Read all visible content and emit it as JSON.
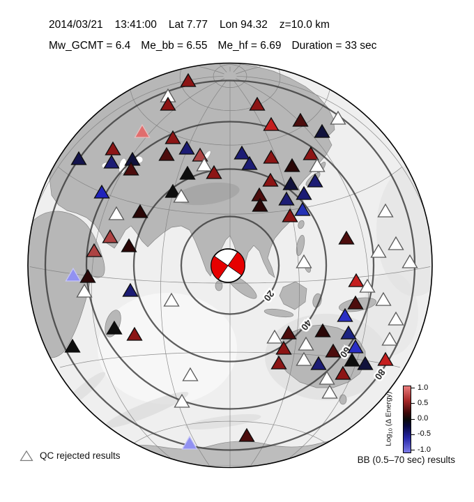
{
  "header": {
    "line1_parts": [
      "2014/03/21",
      "13:41:00",
      "Lat 7.77",
      "Lon 94.32",
      "z=10.0 km"
    ],
    "line2_parts": [
      "Mw_GCMT = 6.4",
      "Me_bb = 6.55",
      "Me_hf = 6.69",
      "Duration = 33 sec"
    ]
  },
  "event": {
    "date": "2014/03/21",
    "time": "13:41:00",
    "lat": 7.77,
    "lon": 94.32,
    "depth_km": 10.0,
    "mw_gcmt": 6.4,
    "me_bb": 6.55,
    "me_hf": 6.69,
    "duration_sec": 33
  },
  "map": {
    "projection": "azimuthal-equidistant",
    "ring_labels": [
      "20",
      "40",
      "60",
      "80"
    ]
  },
  "beachball": {
    "color": "#e60000"
  },
  "station_legend": {
    "qc_label": "QC rejected results"
  },
  "colorbar": {
    "title_prefix": "Log",
    "title_sub": "10",
    "title_suffix": " (Δ Energy)",
    "ticks": [
      "1.0",
      "0.5",
      "0.0",
      "-0.5",
      "-1.0"
    ],
    "footer": "BB (0.5–70 sec) results"
  },
  "stations": [
    [
      270,
      118,
      "#8c1515"
    ],
    [
      241,
      140,
      "#ffffff"
    ],
    [
      241,
      152,
      "#8c1515"
    ],
    [
      204,
      191,
      "#e06d6d"
    ],
    [
      248,
      200,
      "#8c1515"
    ],
    [
      162,
      216,
      "#8c1515"
    ],
    [
      268,
      215,
      "#1c1c74"
    ],
    [
      113,
      230,
      "#14144d"
    ],
    [
      160,
      235,
      "#1c1c74"
    ],
    [
      190,
      231,
      "#11123c"
    ],
    [
      188,
      245,
      "#4d0d0d"
    ],
    [
      239,
      224,
      "#4d0d0d"
    ],
    [
      287,
      225,
      "#ad4343"
    ],
    [
      293,
      239,
      "#ffffff"
    ],
    [
      307,
      250,
      "#8c1515"
    ],
    [
      269,
      251,
      "#0e0e0e"
    ],
    [
      248,
      277,
      "#0e0e0e"
    ],
    [
      260,
      284,
      "#ffffff"
    ],
    [
      146,
      278,
      "#2024bc"
    ],
    [
      167,
      309,
      "#ffffff"
    ],
    [
      201,
      306,
      "#2b0707"
    ],
    [
      158,
      342,
      "#ad4343"
    ],
    [
      135,
      362,
      "#ad4343"
    ],
    [
      185,
      355,
      "#2b0707"
    ],
    [
      105,
      397,
      "#9191f2"
    ],
    [
      126,
      399,
      "#2b0707"
    ],
    [
      121,
      420,
      "#ffffff"
    ],
    [
      187,
      419,
      "#1c1c74"
    ],
    [
      246,
      433,
      "#ffffff"
    ],
    [
      164,
      473,
      "#0e0e0e"
    ],
    [
      193,
      482,
      "#8c1515"
    ],
    [
      104,
      499,
      "#0e0e0e"
    ],
    [
      273,
      540,
      "#ffffff"
    ],
    [
      261,
      578,
      "#ffffff"
    ],
    [
      272,
      638,
      "#9191f2"
    ],
    [
      369,
      152,
      "#8c1515"
    ],
    [
      389,
      181,
      "#c41e1e"
    ],
    [
      431,
      175,
      "#4d0d0d"
    ],
    [
      485,
      172,
      "#ffffff"
    ],
    [
      462,
      191,
      "#11123c"
    ],
    [
      347,
      222,
      "#1c1c74"
    ],
    [
      358,
      237,
      "#1c1c74"
    ],
    [
      389,
      228,
      "#8c1515"
    ],
    [
      446,
      223,
      "#8c1515"
    ],
    [
      419,
      240,
      "#2b0707"
    ],
    [
      455,
      240,
      "#ffffff"
    ],
    [
      388,
      261,
      "#8c1515"
    ],
    [
      417,
      266,
      "#11123c"
    ],
    [
      452,
      262,
      "#1c1c74"
    ],
    [
      436,
      280,
      "#1c1c74"
    ],
    [
      372,
      282,
      "#4d0d0d"
    ],
    [
      373,
      297,
      "#2b0707"
    ],
    [
      411,
      288,
      "#1c1c74"
    ],
    [
      434,
      303,
      "#2431b4"
    ],
    [
      416,
      312,
      "#8c1515"
    ],
    [
      497,
      344,
      "#4d0d0d"
    ],
    [
      553,
      305,
      "#ffffff"
    ],
    [
      568,
      352,
      "#ffffff"
    ],
    [
      543,
      363,
      "#ffffff"
    ],
    [
      588,
      378,
      "#ffffff"
    ],
    [
      436,
      378,
      "#ffffff"
    ],
    [
      511,
      405,
      "#c41e1e"
    ],
    [
      527,
      413,
      "#ffffff"
    ],
    [
      510,
      437,
      "#4d0d0d"
    ],
    [
      550,
      432,
      "#ffffff"
    ],
    [
      495,
      455,
      "#2a2ec4"
    ],
    [
      568,
      460,
      "#ffffff"
    ],
    [
      414,
      480,
      "#4d0d0d"
    ],
    [
      394,
      486,
      "#ffffff"
    ],
    [
      463,
      477,
      "#2b0707"
    ],
    [
      500,
      480,
      "#1b2380"
    ],
    [
      559,
      489,
      "#ffffff"
    ],
    [
      407,
      502,
      "#8c1515"
    ],
    [
      439,
      496,
      "#ffffff"
    ],
    [
      478,
      506,
      "#4d0d0d"
    ],
    [
      510,
      500,
      "#2a2ec4"
    ],
    [
      436,
      518,
      "#ffffff"
    ],
    [
      400,
      523,
      "#8c1515"
    ],
    [
      457,
      524,
      "#1c1c74"
    ],
    [
      505,
      519,
      "#0e0e0e"
    ],
    [
      524,
      524,
      "#11123c"
    ],
    [
      553,
      518,
      "#c41e1e"
    ],
    [
      492,
      538,
      "#8c1515"
    ],
    [
      469,
      545,
      "#ffffff"
    ],
    [
      473,
      565,
      "#ffffff"
    ],
    [
      354,
      627,
      "#4d0d0d"
    ]
  ]
}
